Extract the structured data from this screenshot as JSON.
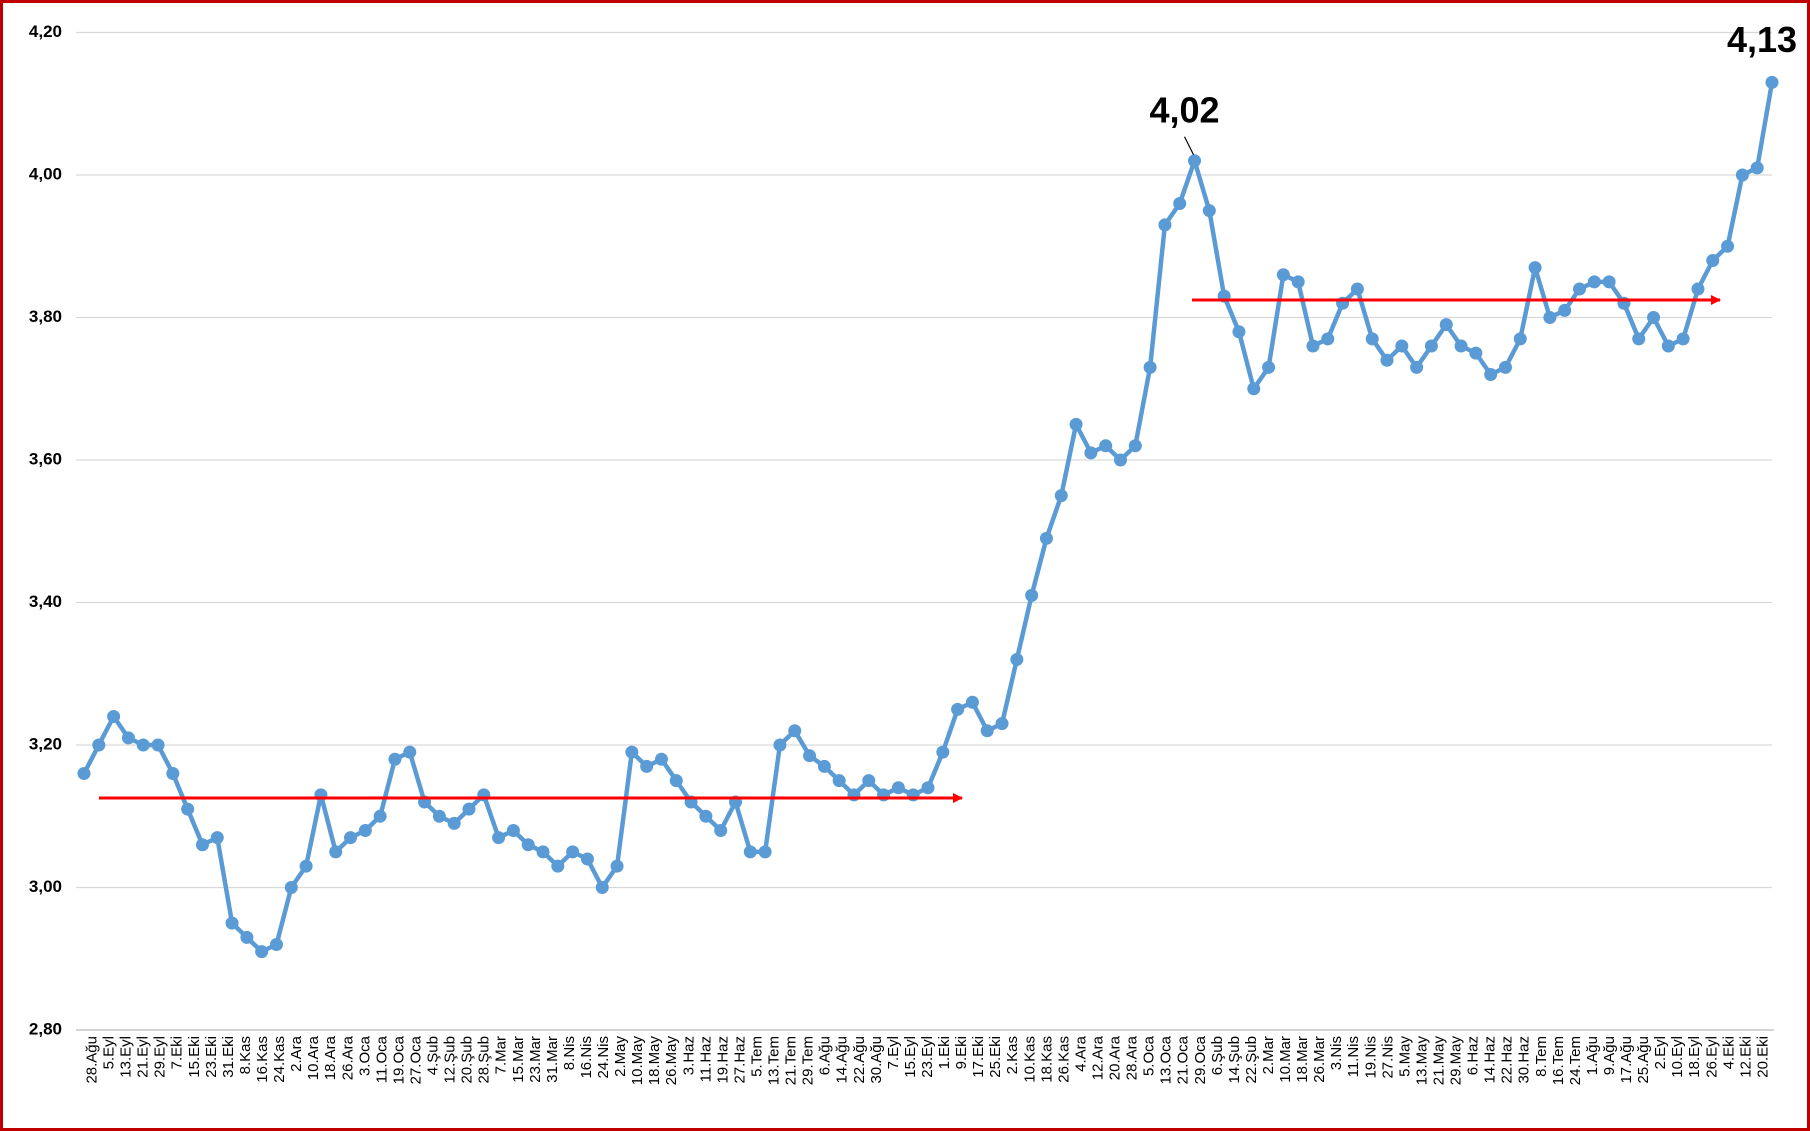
{
  "chart_data": {
    "type": "line",
    "values": [
      3.16,
      3.2,
      3.24,
      3.21,
      3.2,
      3.2,
      3.16,
      3.11,
      3.06,
      3.07,
      2.95,
      2.93,
      2.91,
      2.92,
      3.0,
      3.03,
      3.13,
      3.05,
      3.07,
      3.08,
      3.1,
      3.18,
      3.19,
      3.12,
      3.1,
      3.09,
      3.11,
      3.13,
      3.07,
      3.08,
      3.06,
      3.05,
      3.03,
      3.05,
      3.04,
      3.0,
      3.03,
      3.19,
      3.17,
      3.18,
      3.15,
      3.12,
      3.1,
      3.08,
      3.12,
      3.05,
      3.05,
      3.2,
      3.22,
      3.185,
      3.17,
      3.15,
      3.13,
      3.15,
      3.13,
      3.14,
      3.13,
      3.14,
      3.19,
      3.25,
      3.26,
      3.22,
      3.23,
      3.32,
      3.41,
      3.49,
      3.55,
      3.65,
      3.61,
      3.62,
      3.6,
      3.62,
      3.73,
      3.93,
      3.96,
      4.02,
      3.95,
      3.83,
      3.78,
      3.7,
      3.73,
      3.86,
      3.85,
      3.76,
      3.77,
      3.82,
      3.84,
      3.77,
      3.74,
      3.76,
      3.73,
      3.76,
      3.79,
      3.76,
      3.75,
      3.72,
      3.73,
      3.77,
      3.87,
      3.8,
      3.81,
      3.84,
      3.85,
      3.85,
      3.82,
      3.77,
      3.8,
      3.76,
      3.77,
      3.84,
      3.88,
      3.9,
      4.0,
      4.01,
      4.13
    ],
    "color": "#5b9bd5",
    "xticklabels": [
      "28.Ağu",
      "5.Eyl",
      "13.Eyl",
      "21.Eyl",
      "29.Eyl",
      "7.Eki",
      "15.Eki",
      "23.Eki",
      "31.Eki",
      "8.Kas",
      "16.Kas",
      "24.Kas",
      "2.Ara",
      "10.Ara",
      "18.Ara",
      "26.Ara",
      "3.Oca",
      "11.Oca",
      "19.Oca",
      "27.Oca",
      "4.Şub",
      "12.Şub",
      "20.Şub",
      "28.Şub",
      "7.Mar",
      "15.Mar",
      "23.Mar",
      "31.Mar",
      "8.Nis",
      "16.Nis",
      "24.Nis",
      "2.May",
      "10.May",
      "18.May",
      "26.May",
      "3.Haz",
      "11.Haz",
      "19.Haz",
      "27.Haz",
      "5.Tem",
      "13.Tem",
      "21.Tem",
      "29.Tem",
      "6.Ağu",
      "14.Ağu",
      "22.Ağu",
      "30.Ağu",
      "7.Eyl",
      "15.Eyl",
      "23.Eyl",
      "1.Eki",
      "9.Eki",
      "17.Eki",
      "25.Eki",
      "2.Kas",
      "10.Kas",
      "18.Kas",
      "26.Kas",
      "4.Ara",
      "12.Ara",
      "20.Ara",
      "28.Ara",
      "5.Oca",
      "13.Oca",
      "21.Oca",
      "29.Oca",
      "6.Şub",
      "14.Şub",
      "22.Şub",
      "2.Mar",
      "10.Mar",
      "18.Mar",
      "26.Mar",
      "3.Nis",
      "11.Nis",
      "19.Nis",
      "27.Nis",
      "5.May",
      "13.May",
      "21.May",
      "29.May",
      "6.Haz",
      "14.Haz",
      "22.Haz",
      "30.Haz",
      "8.Tem",
      "16.Tem",
      "24.Tem",
      "1.Ağu",
      "9.Ağu",
      "17.Ağu",
      "25.Ağu",
      "2.Eyl",
      "10.Eyl",
      "18.Eyl",
      "26.Eyl",
      "4.Eki",
      "12.Eki",
      "20.Eki"
    ],
    "ylim": [
      2.8,
      4.2
    ],
    "yticks": [
      {
        "value": 2.8,
        "label": "2,80"
      },
      {
        "value": 3.0,
        "label": "3,00"
      },
      {
        "value": 3.2,
        "label": "3,20"
      },
      {
        "value": 3.4,
        "label": "3,40"
      },
      {
        "value": 3.6,
        "label": "3,60"
      },
      {
        "value": 3.8,
        "label": "3,80"
      },
      {
        "value": 4.0,
        "label": "4,00"
      },
      {
        "value": 4.2,
        "label": "4,20"
      }
    ],
    "grid": true,
    "annotations": [
      {
        "index": 75,
        "text": "4,02"
      },
      {
        "index": 114,
        "text": "4,13"
      }
    ]
  }
}
